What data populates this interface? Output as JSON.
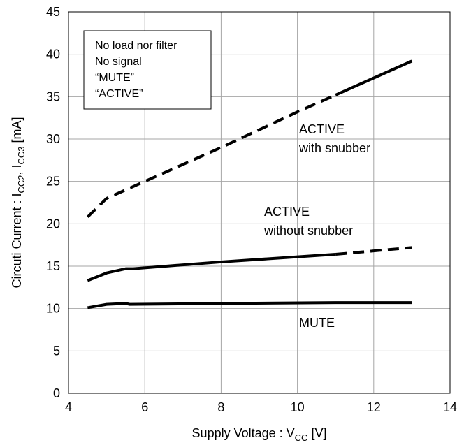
{
  "chart_data": {
    "type": "line",
    "xlabel": [
      "Supply Voltage : V",
      "CC",
      " [V]"
    ],
    "ylabel": [
      "Circuti Current : I",
      "CC2",
      ", I",
      "CC3",
      " [mA]"
    ],
    "xlim": [
      4,
      14
    ],
    "xticks": [
      4,
      6,
      8,
      10,
      12,
      14
    ],
    "ylim": [
      0,
      45
    ],
    "yticks": [
      0,
      5,
      10,
      15,
      20,
      25,
      30,
      35,
      40,
      45
    ],
    "grid": true,
    "legend_box": [
      "No load nor filter",
      "No signal",
      "“MUTE”",
      "“ACTIVE”"
    ],
    "annotations": [
      [
        "ACTIVE",
        "with snubber"
      ],
      [
        "ACTIVE",
        "without snubber"
      ],
      [
        "MUTE"
      ]
    ],
    "series": [
      {
        "color": "#000000",
        "style": "solid",
        "x": [
          4.5,
          5,
          5.5,
          5.6,
          8,
          11,
          13
        ],
        "values": [
          10.1,
          10.5,
          10.6,
          10.5,
          10.6,
          10.7,
          10.7
        ]
      },
      {
        "color": "#000000",
        "style": "solid",
        "x": [
          4.5,
          5,
          5.5,
          5.7,
          8,
          11
        ],
        "values": [
          13.3,
          14.2,
          14.7,
          14.7,
          15.5,
          16.4
        ]
      },
      {
        "color": "#000000",
        "style": "dashed",
        "x": [
          11,
          12,
          13
        ],
        "values": [
          16.4,
          16.8,
          17.2
        ]
      },
      {
        "color": "#000000",
        "style": "dashed",
        "x": [
          4.5,
          5,
          5.5,
          6,
          8,
          10,
          11
        ],
        "values": [
          20.8,
          23,
          24,
          25,
          29,
          33.2,
          35.2
        ]
      },
      {
        "color": "#000000",
        "style": "solid",
        "x": [
          11,
          12,
          13
        ],
        "values": [
          35.2,
          37.2,
          39.2
        ]
      }
    ]
  }
}
